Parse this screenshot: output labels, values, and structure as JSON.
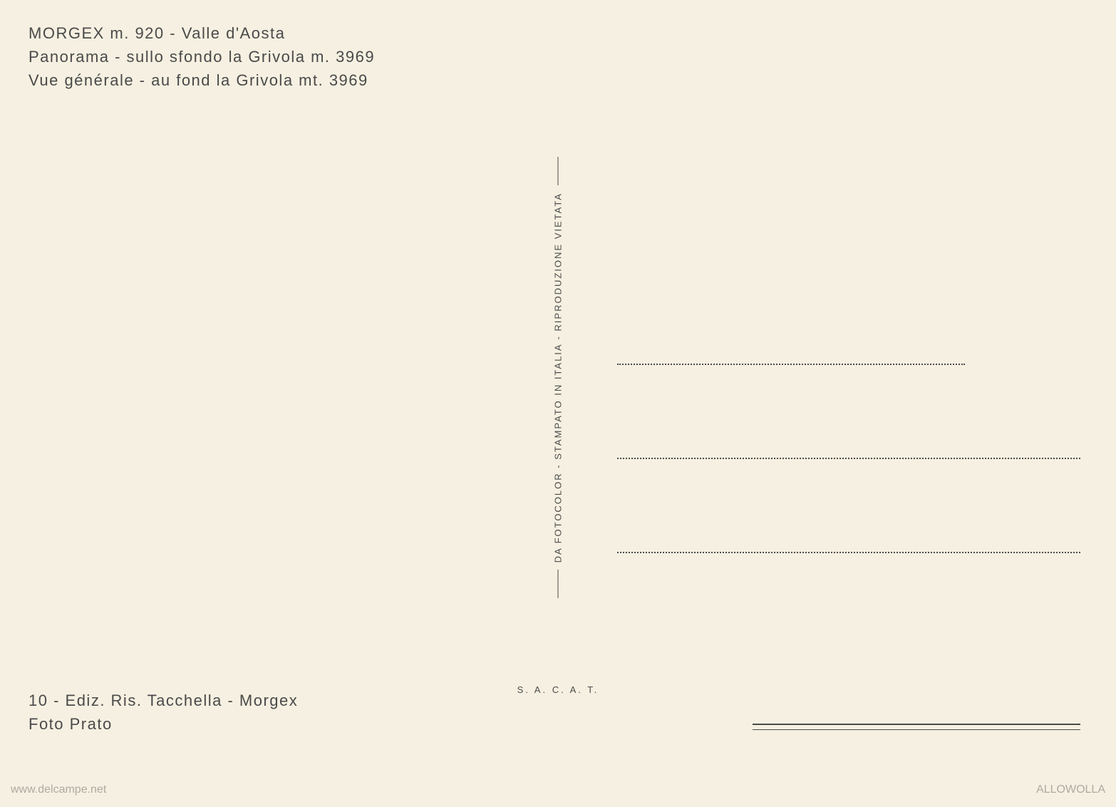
{
  "header": {
    "line1": "MORGEX m. 920 - Valle d'Aosta",
    "line2": "Panorama - sullo sfondo la Grivola m. 3969",
    "line3": "Vue générale - au fond la Grivola mt. 3969"
  },
  "divider": {
    "text": "DA FOTOCOLOR - STAMPATO IN ITALIA - RIPRODUZIONE VIETATA"
  },
  "publisher_code": "S. A. C. A. T.",
  "footer": {
    "line1": "10 - Ediz. Ris. Tacchella - Morgex",
    "line2": "Foto Prato"
  },
  "watermarks": {
    "left": "www.delcampe.net",
    "right": "ALLOWOLLA"
  },
  "styling": {
    "background_color": "#f5f0e1",
    "text_color": "#4a4a4a",
    "header_fontsize": 22,
    "footer_fontsize": 22,
    "divider_fontsize": 13,
    "letter_spacing": 1.5,
    "divider_letter_spacing": 2,
    "watermark_color": "rgba(100, 100, 100, 0.5)",
    "watermark_fontsize": 16
  }
}
